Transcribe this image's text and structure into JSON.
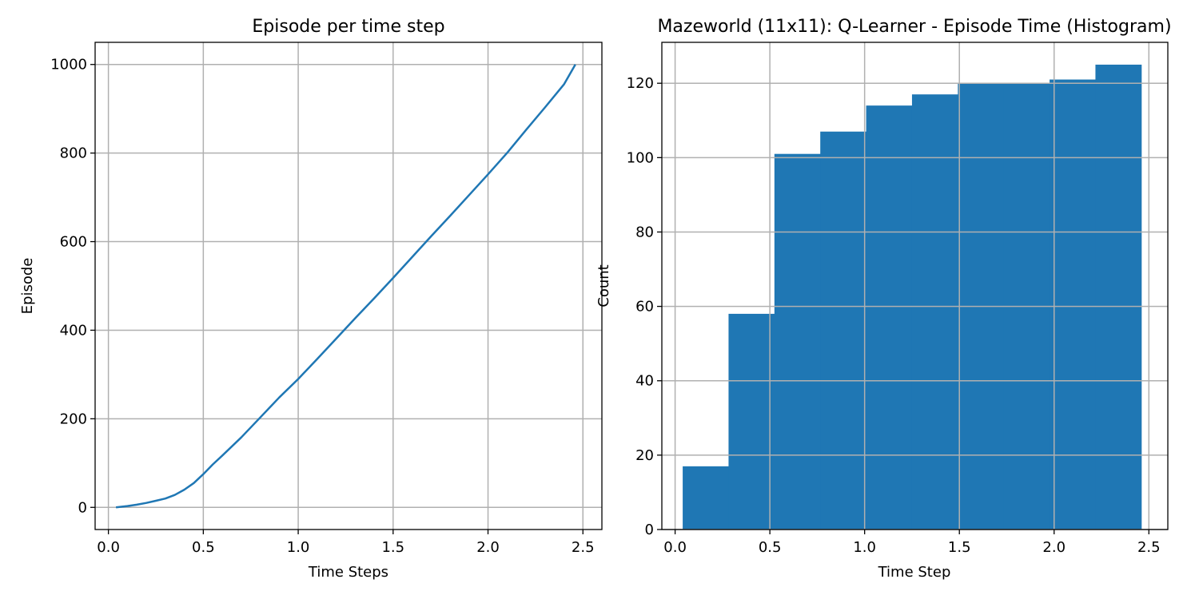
{
  "chart_data": [
    {
      "type": "line",
      "title": "Episode per time step",
      "xlabel": "Time Steps",
      "ylabel": "Episode",
      "xlim": [
        -0.07,
        2.6
      ],
      "ylim": [
        -50,
        1050
      ],
      "xticks": [
        0.0,
        0.5,
        1.0,
        1.5,
        2.0,
        2.5
      ],
      "xtick_labels": [
        "0.0",
        "0.5",
        "1.0",
        "1.5",
        "2.0",
        "2.5"
      ],
      "yticks": [
        0,
        200,
        400,
        600,
        800,
        1000
      ],
      "ytick_labels": [
        "0",
        "200",
        "400",
        "600",
        "800",
        "1000"
      ],
      "grid": true,
      "series": [
        {
          "color": "#1f77b4",
          "x": [
            0.04,
            0.1,
            0.15,
            0.2,
            0.25,
            0.3,
            0.35,
            0.4,
            0.45,
            0.5,
            0.55,
            0.6,
            0.7,
            0.8,
            0.9,
            1.0,
            1.1,
            1.2,
            1.3,
            1.4,
            1.5,
            1.6,
            1.7,
            1.8,
            1.9,
            2.0,
            2.1,
            2.2,
            2.3,
            2.4,
            2.46
          ],
          "y": [
            0,
            3,
            6,
            10,
            15,
            20,
            28,
            40,
            55,
            75,
            97,
            117,
            158,
            203,
            248,
            290,
            335,
            381,
            427,
            472,
            518,
            565,
            612,
            658,
            705,
            752,
            800,
            852,
            903,
            955,
            1000
          ]
        }
      ]
    },
    {
      "type": "bar",
      "title": "Mazeworld (11x11): Q-Learner - Episode Time (Histogram)",
      "xlabel": "Time Step",
      "ylabel": "Count",
      "xlim": [
        -0.07,
        2.6
      ],
      "ylim": [
        0,
        131
      ],
      "xticks": [
        0.0,
        0.5,
        1.0,
        1.5,
        2.0,
        2.5
      ],
      "xtick_labels": [
        "0.0",
        "0.5",
        "1.0",
        "1.5",
        "2.0",
        "2.5"
      ],
      "yticks": [
        0,
        20,
        40,
        60,
        80,
        100,
        120
      ],
      "ytick_labels": [
        "0",
        "20",
        "40",
        "60",
        "80",
        "100",
        "120"
      ],
      "grid": true,
      "bin_edges": [
        0.04,
        0.282,
        0.524,
        0.766,
        1.008,
        1.25,
        1.492,
        1.734,
        1.976,
        2.218,
        2.46
      ],
      "values": [
        17,
        58,
        101,
        107,
        114,
        117,
        120,
        120,
        121,
        125
      ],
      "color": "#1f77b4"
    }
  ]
}
